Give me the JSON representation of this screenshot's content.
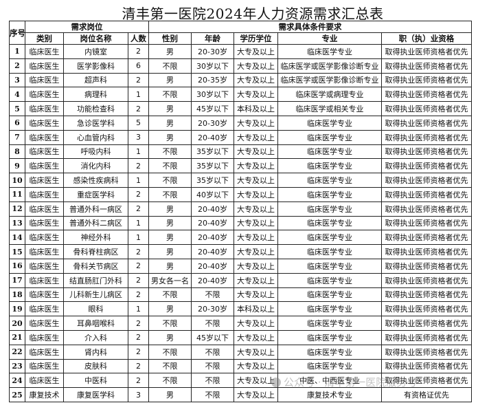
{
  "title": "清丰第一医院2024年人力资源需求汇总表",
  "header": {
    "seq": "序号",
    "group_position": "需求岗位",
    "group_conditions": "需求具体条件要求",
    "columns": [
      "类别",
      "岗位名称",
      "人数",
      "性别",
      "年龄",
      "学历学位",
      "专业",
      "职（执）业资格"
    ]
  },
  "rows": [
    [
      "1",
      "临床医生",
      "内镜室",
      "2",
      "男",
      "20-30岁",
      "大专及以上",
      "临床医学专业",
      "取得执业医师资格者优先"
    ],
    [
      "2",
      "临床医生",
      "医学影像科",
      "6",
      "不限",
      "30岁以下",
      "大专及以上",
      "临床医学或医学影像诊断专业",
      "取得执业医师资格者优先"
    ],
    [
      "3",
      "临床医生",
      "超声科",
      "2",
      "男",
      "20-35岁",
      "大专及以上",
      "临床医学或医学影像诊断专业",
      "取得执业医师资格者优先"
    ],
    [
      "4",
      "临床医生",
      "病理科",
      "1",
      "不限",
      "30岁以下",
      "大专及以上",
      "临床医学或病理专业",
      "取得执业医师资格者优先"
    ],
    [
      "5",
      "临床医生",
      "功能检查科",
      "2",
      "男",
      "45岁以下",
      "本科及以上",
      "临床医学或相关专业",
      "取得执业医师资格者优先"
    ],
    [
      "6",
      "临床医生",
      "急诊医学科",
      "5",
      "男",
      "20-30岁",
      "大专及以上",
      "临床医学专业",
      "取得执业医师资格者优先"
    ],
    [
      "7",
      "临床医生",
      "心血管内科",
      "3",
      "男",
      "20-40岁",
      "大专及以上",
      "临床医学专业",
      "取得执业医师资格者优先"
    ],
    [
      "8",
      "临床医生",
      "呼吸内科",
      "1",
      "不限",
      "35岁以下",
      "大专及以上",
      "临床医学专业",
      "取得执业医师资格者优先"
    ],
    [
      "9",
      "临床医生",
      "消化内科",
      "2",
      "不限",
      "35岁以下",
      "大专及以上",
      "临床医学专业",
      "取得执业医师资格者优先"
    ],
    [
      "10",
      "临床医生",
      "感染性疾病科",
      "1",
      "不限",
      "35岁以下",
      "大专及以上",
      "临床医学专业",
      "取得执业医师资格者优先"
    ],
    [
      "11",
      "临床医生",
      "重症医学科",
      "2",
      "不限",
      "40岁以下",
      "大专及以上",
      "临床医学专业",
      "取得执业医师资格者优先"
    ],
    [
      "12",
      "临床医生",
      "普通外科一病区",
      "2",
      "男",
      "20-40岁",
      "大专及以上",
      "临床医学专业",
      "取得执业医师资格者优先"
    ],
    [
      "13",
      "临床医生",
      "普通外科二病区",
      "1",
      "男",
      "20-40岁",
      "大专及以上",
      "临床医学专业",
      "取得执业医师资格者优先"
    ],
    [
      "14",
      "临床医生",
      "神经外科",
      "1",
      "男",
      "20-40岁",
      "大专及以上",
      "临床医学专业",
      "取得执业医师资格者优先"
    ],
    [
      "15",
      "临床医生",
      "骨科脊柱病区",
      "2",
      "男",
      "20-40岁",
      "大专及以上",
      "临床医学专业",
      "取得执业医师资格者优先"
    ],
    [
      "16",
      "临床医生",
      "骨科关节病区",
      "2",
      "男",
      "20-40岁",
      "大专及以上",
      "临床医学专业",
      "取得执业医师资格者优先"
    ],
    [
      "17",
      "临床医生",
      "结直肠肛门外科",
      "2",
      "男女各一名",
      "20-40岁",
      "大专及以上",
      "临床医学专业",
      "取得执业医师资格者优先"
    ],
    [
      "18",
      "临床医生",
      "儿科新生儿病区",
      "2",
      "不限",
      "不限",
      "大专及以上",
      "临床医学专业",
      "取得执业医师资格者优先"
    ],
    [
      "19",
      "临床医生",
      "眼科",
      "1",
      "男",
      "20-30岁",
      "本科及以上",
      "临床医学专业",
      "取得执业医师资格者优先"
    ],
    [
      "20",
      "临床医生",
      "耳鼻咽喉科",
      "2",
      "不限",
      "不限",
      "大专及以上",
      "临床医学专业",
      "取得执业医师资格者优先"
    ],
    [
      "21",
      "临床医生",
      "介入科",
      "2",
      "男",
      "45岁以下",
      "大专及以上",
      "临床医学专业",
      "取得执业医师资格者优先"
    ],
    [
      "22",
      "临床医生",
      "肾内科",
      "2",
      "不限",
      "不限",
      "大专及以上",
      "临床医学专业",
      "取得执业医师资格者优先"
    ],
    [
      "23",
      "临床医生",
      "皮肤科",
      "2",
      "不限",
      "不限",
      "大专及以上",
      "临床医学专业",
      "取得执业医师资格者优先"
    ],
    [
      "24",
      "临床医生",
      "中医科",
      "2",
      "不限",
      "不限",
      "大专及以上",
      "中医、中西医专业",
      "取得执业医师资格者优先"
    ],
    [
      "25",
      "康复技术",
      "康复医学科",
      "3",
      "男",
      "不限",
      "大专及以上",
      "康复技术专业",
      "有资格证优先"
    ]
  ],
  "watermark": "公众号 · 清丰第一医院服务号"
}
